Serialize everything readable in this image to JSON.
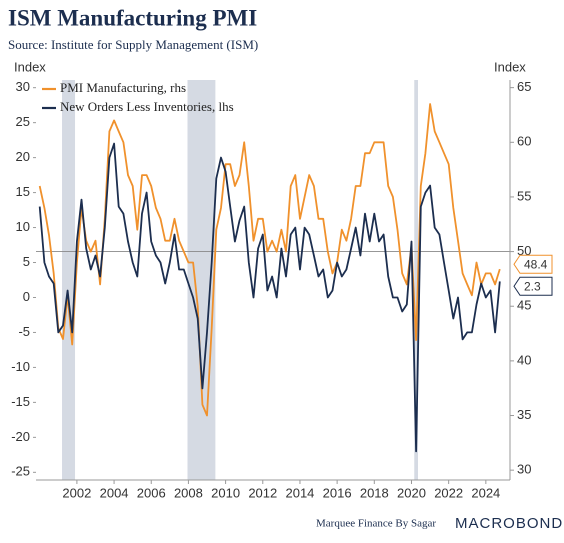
{
  "chart_data": {
    "type": "line",
    "title": "ISM Manufacturing PMI",
    "subtitle": "Source: Institute for Supply Management (ISM)",
    "y_axis_label": "Index",
    "y2_axis_label": "Index",
    "footer": "Marquee Finance By Sagar",
    "logo": "MACROBOND",
    "x": [
      2000,
      2000.25,
      2000.5,
      2000.75,
      2001,
      2001.25,
      2001.5,
      2001.75,
      2002,
      2002.25,
      2002.5,
      2002.75,
      2003,
      2003.25,
      2003.5,
      2003.75,
      2004,
      2004.25,
      2004.5,
      2004.75,
      2005,
      2005.25,
      2005.5,
      2005.75,
      2006,
      2006.25,
      2006.5,
      2006.75,
      2007,
      2007.25,
      2007.5,
      2007.75,
      2008,
      2008.25,
      2008.5,
      2008.75,
      2009,
      2009.25,
      2009.5,
      2009.75,
      2010,
      2010.25,
      2010.5,
      2010.75,
      2011,
      2011.25,
      2011.5,
      2011.75,
      2012,
      2012.25,
      2012.5,
      2012.75,
      2013,
      2013.25,
      2013.5,
      2013.75,
      2014,
      2014.25,
      2014.5,
      2014.75,
      2015,
      2015.25,
      2015.5,
      2015.75,
      2016,
      2016.25,
      2016.5,
      2016.75,
      2017,
      2017.25,
      2017.5,
      2017.75,
      2018,
      2018.25,
      2018.5,
      2018.75,
      2019,
      2019.25,
      2019.5,
      2019.75,
      2020,
      2020.25,
      2020.5,
      2020.75,
      2021,
      2021.25,
      2021.5,
      2021.75,
      2022,
      2022.25,
      2022.5,
      2022.75,
      2023,
      2023.25,
      2023.5,
      2023.75,
      2024,
      2024.25,
      2024.5,
      2024.75
    ],
    "series": [
      {
        "name": "PMI Manufacturing, rhs",
        "color": "#f0912c",
        "axis": "y2",
        "end_label": "48.4",
        "values": [
          56,
          54,
          51.5,
          48,
          43,
          42,
          46,
          41.5,
          49,
          54,
          51,
          50,
          51,
          47,
          53,
          61,
          62,
          61,
          60,
          57,
          56,
          52,
          57,
          57,
          56,
          54,
          53,
          51,
          51,
          53,
          51,
          50,
          49,
          49,
          45,
          36,
          35,
          43,
          52,
          54,
          58,
          58,
          56,
          57,
          60,
          56,
          51,
          53,
          53,
          50,
          51,
          50,
          52,
          50,
          56,
          57,
          53,
          55,
          57,
          56,
          53,
          53,
          50,
          48,
          49,
          52,
          51,
          53,
          56,
          56,
          59,
          59,
          60,
          60,
          60,
          56,
          55,
          52,
          48,
          47,
          50.5,
          41.9,
          56,
          59,
          63.5,
          61,
          60,
          59,
          58,
          54,
          51,
          48,
          47,
          46,
          49,
          47,
          48,
          48,
          47,
          48.4
        ]
      },
      {
        "name": "New Orders Less Inventories, lhs",
        "color": "#1c2e4f",
        "end_label": "2.3",
        "values": [
          13,
          5,
          3,
          2,
          -5,
          -4,
          1,
          -5,
          8,
          14,
          7,
          4,
          6,
          3,
          10,
          20,
          22,
          13,
          12,
          8,
          5,
          3,
          12,
          15,
          8,
          6,
          5,
          2,
          5,
          9,
          4,
          4,
          2,
          0,
          -3,
          -13,
          -5,
          5,
          17,
          20,
          18,
          13,
          8,
          11,
          13,
          5,
          0,
          7,
          9,
          1,
          3,
          0,
          7,
          3,
          9,
          10,
          4,
          10,
          9,
          6,
          3,
          4,
          0,
          1,
          5,
          3,
          4,
          7,
          10,
          6,
          12,
          8,
          12,
          8,
          9,
          3,
          0,
          0,
          -2,
          -1,
          8,
          -22,
          13,
          15,
          16,
          10,
          9,
          5,
          1,
          -3,
          0,
          -6,
          -5,
          -5,
          -1,
          2,
          0,
          1,
          -5,
          2.3
        ]
      }
    ],
    "shaded_periods": [
      [
        2001.2,
        2001.9
      ],
      [
        2007.95,
        2009.45
      ],
      [
        2020.15,
        2020.35
      ]
    ],
    "reference_line": {
      "value": 50,
      "axis": "y2"
    },
    "xlim": [
      1999.8,
      2025.3
    ],
    "xticks": [
      2002,
      2004,
      2006,
      2008,
      2010,
      2012,
      2014,
      2016,
      2018,
      2020,
      2022,
      2024
    ],
    "ylim": [
      -26.1,
      31.1
    ],
    "yticks": [
      -25,
      -20,
      -15,
      -10,
      -5,
      0,
      5,
      10,
      15,
      20,
      25,
      30
    ],
    "y2lim": [
      29.1,
      65.7
    ],
    "y2ticks": [
      30,
      35,
      40,
      45,
      50,
      55,
      60,
      65
    ],
    "legend": "upper left"
  }
}
